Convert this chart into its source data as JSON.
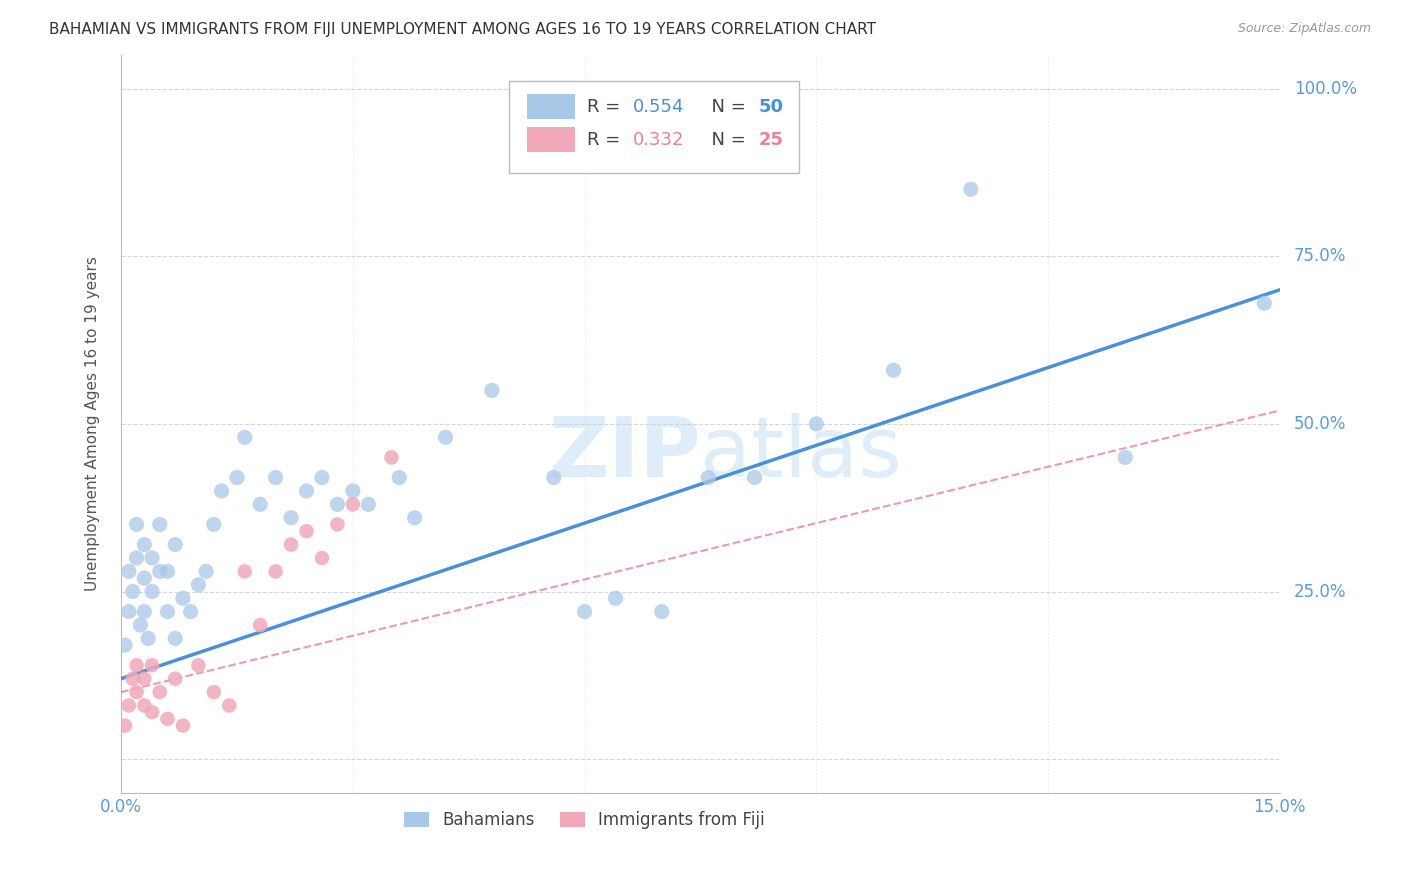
{
  "title": "BAHAMIAN VS IMMIGRANTS FROM FIJI UNEMPLOYMENT AMONG AGES 16 TO 19 YEARS CORRELATION CHART",
  "source": "Source: ZipAtlas.com",
  "ylabel": "Unemployment Among Ages 16 to 19 years",
  "xlim": [
    0,
    0.15
  ],
  "ylim": [
    -0.05,
    1.05
  ],
  "yticks": [
    0.0,
    0.25,
    0.5,
    0.75,
    1.0
  ],
  "ytick_labels": [
    "",
    "25.0%",
    "50.0%",
    "75.0%",
    "100.0%"
  ],
  "xticks": [
    0.0,
    0.03,
    0.06,
    0.09,
    0.12,
    0.15
  ],
  "xtick_labels": [
    "0.0%",
    "",
    "",
    "",
    "",
    "15.0%"
  ],
  "blue_color": "#4a90d9",
  "pink_color": "#e8819a",
  "axis_label_color": "#5b9bd5",
  "grid_color": "#cccccc",
  "background_color": "#ffffff",
  "watermark": "ZIPatlas",
  "blue_scatter_color": "#a8c8e8",
  "pink_scatter_color": "#f0a8b8",
  "blue_line_x": [
    0.0,
    0.15
  ],
  "blue_line_y": [
    0.12,
    0.7
  ],
  "pink_line_x": [
    0.0,
    0.15
  ],
  "pink_line_y": [
    0.1,
    0.52
  ],
  "bahamians_x": [
    0.0005,
    0.001,
    0.001,
    0.0015,
    0.002,
    0.002,
    0.0025,
    0.003,
    0.003,
    0.003,
    0.0035,
    0.004,
    0.004,
    0.005,
    0.005,
    0.006,
    0.006,
    0.007,
    0.007,
    0.008,
    0.009,
    0.01,
    0.011,
    0.012,
    0.013,
    0.015,
    0.016,
    0.018,
    0.02,
    0.022,
    0.024,
    0.026,
    0.028,
    0.03,
    0.032,
    0.036,
    0.038,
    0.042,
    0.048,
    0.056,
    0.06,
    0.064,
    0.07,
    0.076,
    0.082,
    0.09,
    0.1,
    0.11,
    0.13,
    0.148
  ],
  "bahamians_y": [
    0.17,
    0.22,
    0.28,
    0.25,
    0.3,
    0.35,
    0.2,
    0.22,
    0.27,
    0.32,
    0.18,
    0.25,
    0.3,
    0.28,
    0.35,
    0.22,
    0.28,
    0.18,
    0.32,
    0.24,
    0.22,
    0.26,
    0.28,
    0.35,
    0.4,
    0.42,
    0.48,
    0.38,
    0.42,
    0.36,
    0.4,
    0.42,
    0.38,
    0.4,
    0.38,
    0.42,
    0.36,
    0.48,
    0.55,
    0.42,
    0.22,
    0.24,
    0.22,
    0.42,
    0.42,
    0.5,
    0.58,
    0.85,
    0.45,
    0.68
  ],
  "fiji_x": [
    0.0005,
    0.001,
    0.0015,
    0.002,
    0.002,
    0.003,
    0.003,
    0.004,
    0.004,
    0.005,
    0.006,
    0.007,
    0.008,
    0.01,
    0.012,
    0.014,
    0.016,
    0.018,
    0.02,
    0.022,
    0.024,
    0.026,
    0.028,
    0.03,
    0.035
  ],
  "fiji_y": [
    0.05,
    0.08,
    0.12,
    0.1,
    0.14,
    0.08,
    0.12,
    0.14,
    0.07,
    0.1,
    0.06,
    0.12,
    0.05,
    0.14,
    0.1,
    0.08,
    0.28,
    0.2,
    0.28,
    0.32,
    0.34,
    0.3,
    0.35,
    0.38,
    0.45
  ]
}
